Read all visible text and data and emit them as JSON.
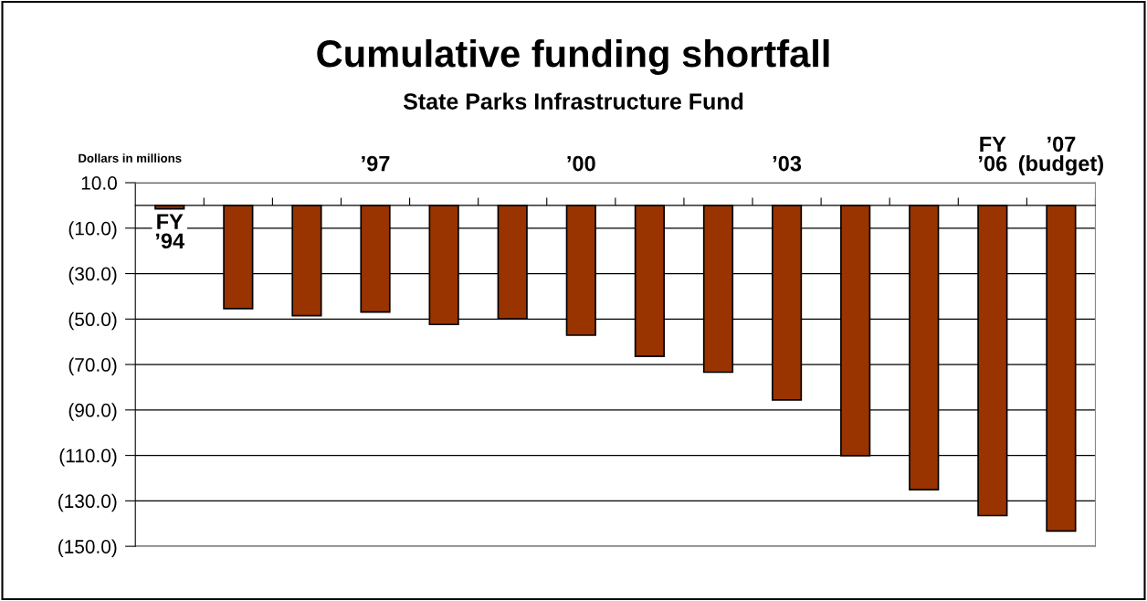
{
  "chart_data": {
    "type": "bar",
    "title": "Cumulative funding shortfall",
    "subtitle": "State Parks Infrastructure Fund",
    "ylabel": "Dollars in millions",
    "categories": [
      "FY\n’94",
      null,
      null,
      "’97",
      null,
      null,
      "’00",
      null,
      null,
      "’03",
      null,
      null,
      "FY\n’06",
      "’07\n(budget)"
    ],
    "values": [
      -1.5,
      -45.4,
      -48.5,
      -46.9,
      -52.4,
      -49.9,
      -57.1,
      -66.4,
      -73.4,
      -85.6,
      -110.1,
      -125.1,
      -136.5,
      -143.3
    ],
    "color": "#993300",
    "ylim": [
      -150,
      10
    ],
    "yticks": [
      {
        "value": 10,
        "label": "10.0"
      },
      {
        "value": -10,
        "label": "(10.0)"
      },
      {
        "value": -30,
        "label": "(30.0)"
      },
      {
        "value": -50,
        "label": "(50.0)"
      },
      {
        "value": -70,
        "label": "(70.0)"
      },
      {
        "value": -90,
        "label": "(90.0)"
      },
      {
        "value": -110,
        "label": "(110.0)"
      },
      {
        "value": -130,
        "label": "(130.0)"
      },
      {
        "value": -150,
        "label": "(150.0)"
      }
    ],
    "grid": "y",
    "legend": false
  }
}
